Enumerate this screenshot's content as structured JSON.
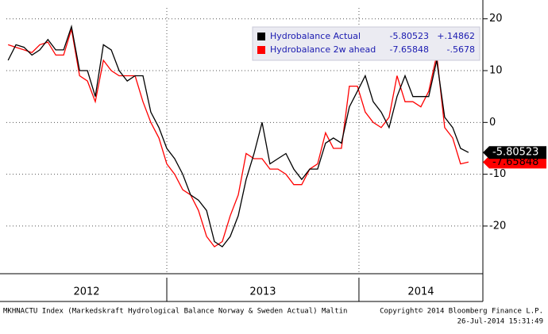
{
  "chart_data": {
    "type": "line",
    "x": [
      2012.174,
      2012.215,
      2012.257,
      2012.298,
      2012.339,
      2012.381,
      2012.422,
      2012.463,
      2012.504,
      2012.546,
      2012.587,
      2012.628,
      2012.67,
      2012.711,
      2012.752,
      2012.794,
      2012.835,
      2012.876,
      2012.917,
      2012.959,
      2013.0,
      2013.041,
      2013.083,
      2013.124,
      2013.165,
      2013.207,
      2013.248,
      2013.289,
      2013.33,
      2013.372,
      2013.413,
      2013.454,
      2013.496,
      2013.537,
      2013.578,
      2013.62,
      2013.661,
      2013.702,
      2013.744,
      2013.785,
      2013.826,
      2013.867,
      2013.909,
      2013.95,
      2013.992,
      2014.033,
      2014.074,
      2014.116,
      2014.157,
      2014.198,
      2014.24,
      2014.281,
      2014.322,
      2014.363,
      2014.405,
      2014.446,
      2014.488,
      2014.529,
      2014.57
    ],
    "series": [
      {
        "name": "Hydrobalance 2w ahead",
        "color": "#ff0000",
        "tag_text": "#000000",
        "change": {
          "value": -0.5678,
          "label": "-.5678"
        },
        "values": [
          15,
          14.5,
          14,
          13.5,
          15,
          15.5,
          13,
          13,
          18,
          9,
          8,
          4,
          12,
          10,
          9,
          9,
          9,
          4,
          0,
          -3,
          -8,
          -10,
          -13,
          -14,
          -17,
          -22,
          -24,
          -23,
          -18,
          -14,
          -6,
          -7,
          -7,
          -9,
          -9,
          -10,
          -12,
          -12,
          -9,
          -8,
          -2,
          -5,
          -5,
          7,
          7,
          2,
          0,
          -1,
          1,
          9,
          4,
          4,
          3,
          6,
          13,
          -1,
          -3,
          -8,
          -7.65848
        ]
      },
      {
        "name": "Hydrobalance Actual",
        "color": "#000000",
        "tag_text": "#ffffff",
        "change": {
          "value": 0.14862,
          "label": "+.14862"
        },
        "values": [
          12,
          15,
          14.5,
          13,
          14,
          16,
          14,
          14,
          18.5,
          10,
          10,
          5,
          15,
          14,
          10,
          8,
          9,
          9,
          2,
          -1,
          -5,
          -7,
          -10,
          -14,
          -15,
          -17,
          -23,
          -24,
          -22,
          -18,
          -11,
          -6,
          0,
          -8,
          -7,
          -6,
          -9,
          -11,
          -9,
          -9,
          -4,
          -3,
          -4,
          3,
          6,
          9,
          4,
          2,
          -1,
          5,
          9,
          5,
          5,
          5,
          12,
          1,
          -1,
          -5,
          -5.80523
        ]
      }
    ],
    "legend_order": [
      1,
      0
    ],
    "xlim": [
      2012.165,
      2014.645
    ],
    "xticks": [
      2013,
      2014
    ],
    "year_labels": [
      "2012",
      "2013",
      "2014"
    ],
    "ylim": [
      -29.2,
      22.1
    ],
    "yticks": [
      -20,
      -10,
      0,
      10,
      20
    ],
    "grid": true,
    "footer_left": "MKHNACTU Index (Markedskraft Hydrological Balance Norway & Sweden Actual) Maltin",
    "footer_right": [
      "Copyright© 2014 Bloomberg Finance L.P.",
      "26-Jul-2014 15:31:49"
    ]
  }
}
